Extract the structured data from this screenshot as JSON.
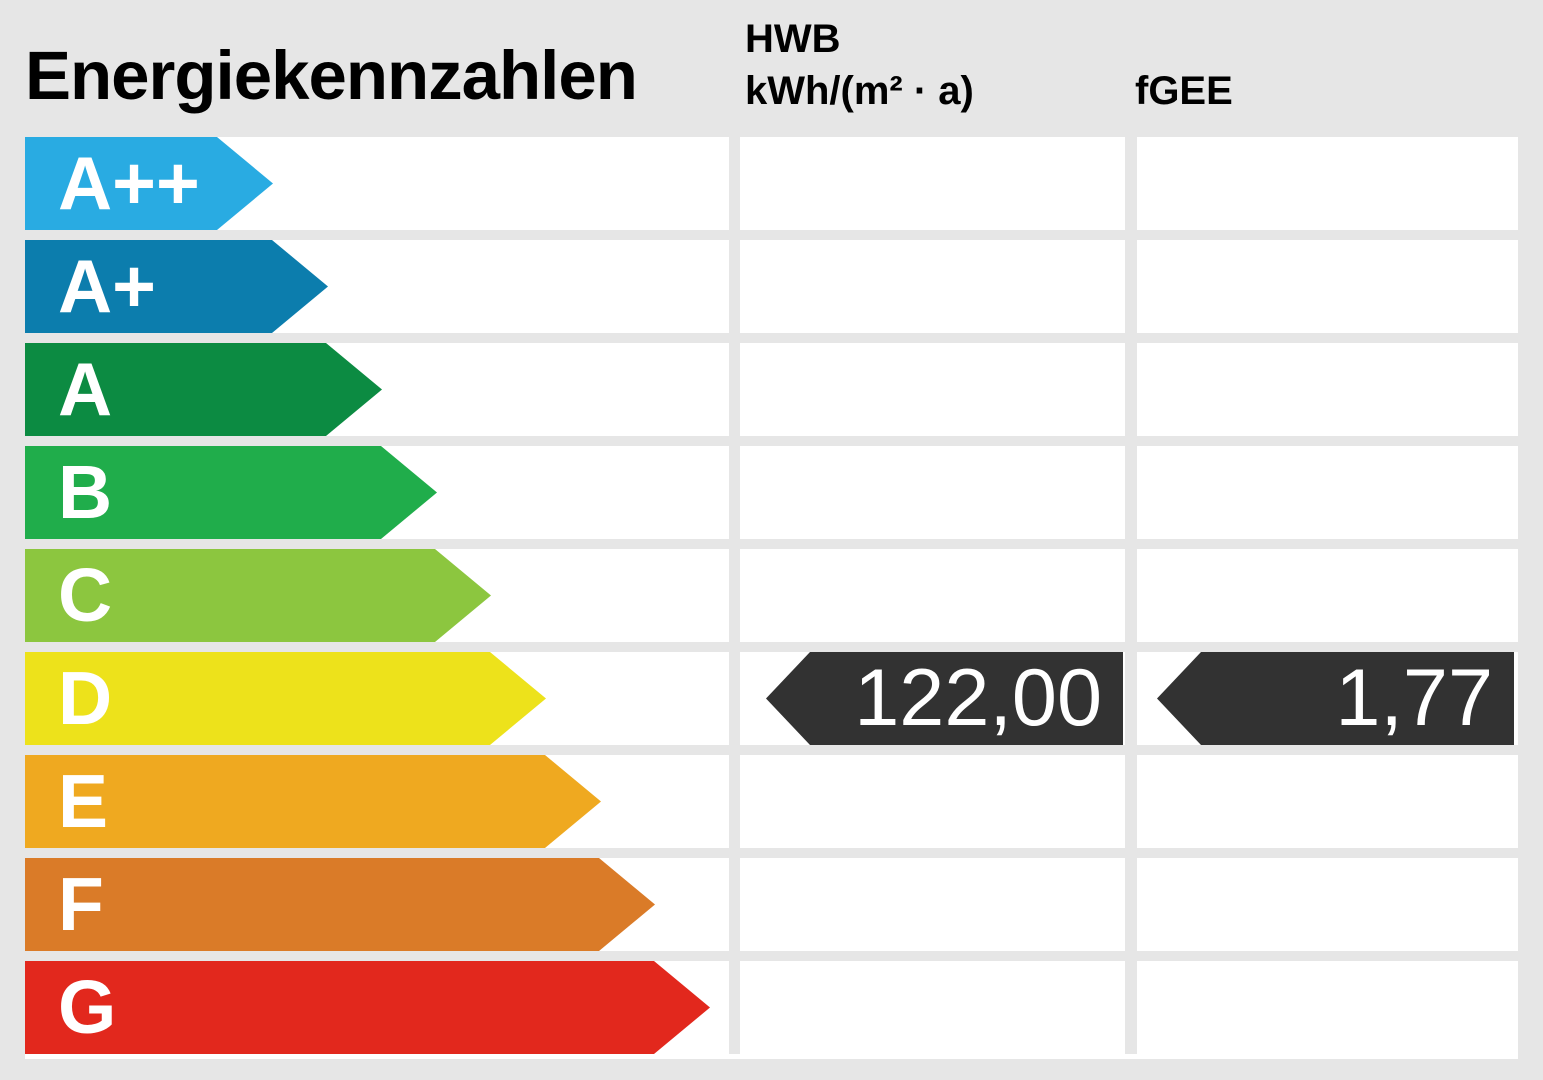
{
  "title": "Energiekennzahlen",
  "header": {
    "hwb_line1": "HWB",
    "hwb_line2": "kWh/(m² · a)",
    "fgee_label": "fGEE"
  },
  "scale": {
    "rows": [
      {
        "label": "A++",
        "color": "#29ABE2"
      },
      {
        "label": "A+",
        "color": "#0C7DAD"
      },
      {
        "label": "A",
        "color": "#0C8B42"
      },
      {
        "label": "B",
        "color": "#20AD4B"
      },
      {
        "label": "C",
        "color": "#8CC63F"
      },
      {
        "label": "D",
        "color": "#EDE21B"
      },
      {
        "label": "E",
        "color": "#EFA920"
      },
      {
        "label": "F",
        "color": "#DA7B28"
      },
      {
        "label": "G",
        "color": "#E2281D"
      }
    ]
  },
  "values": {
    "hwb": "122,00",
    "fgee": "1,77",
    "rated_class": "D"
  },
  "colors": {
    "background": "#E6E6E6",
    "cell": "#FFFFFF",
    "value_arrow": "#323232",
    "text_dark": "#000000",
    "text_light": "#FFFFFF"
  },
  "chart_data": {
    "type": "bar",
    "orientation": "horizontal",
    "title": "Energiekennzahlen",
    "categories": [
      "A++",
      "A+",
      "A",
      "B",
      "C",
      "D",
      "E",
      "F",
      "G"
    ],
    "category_colors": [
      "#29ABE2",
      "#0C7DAD",
      "#0C8B42",
      "#20AD4B",
      "#8CC63F",
      "#EDE21B",
      "#EFA920",
      "#DA7B28",
      "#E2281D"
    ],
    "bar_relative_lengths": [
      0.36,
      0.44,
      0.52,
      0.6,
      0.68,
      0.76,
      0.84,
      0.92,
      1.0
    ],
    "metrics": [
      {
        "name": "HWB",
        "unit": "kWh/(m² · a)",
        "value_label": "122,00",
        "value": 122.0,
        "rating": "D"
      },
      {
        "name": "fGEE",
        "unit": "",
        "value_label": "1,77",
        "value": 1.77,
        "rating": "D"
      }
    ],
    "legend_position": "none",
    "grid": true
  }
}
